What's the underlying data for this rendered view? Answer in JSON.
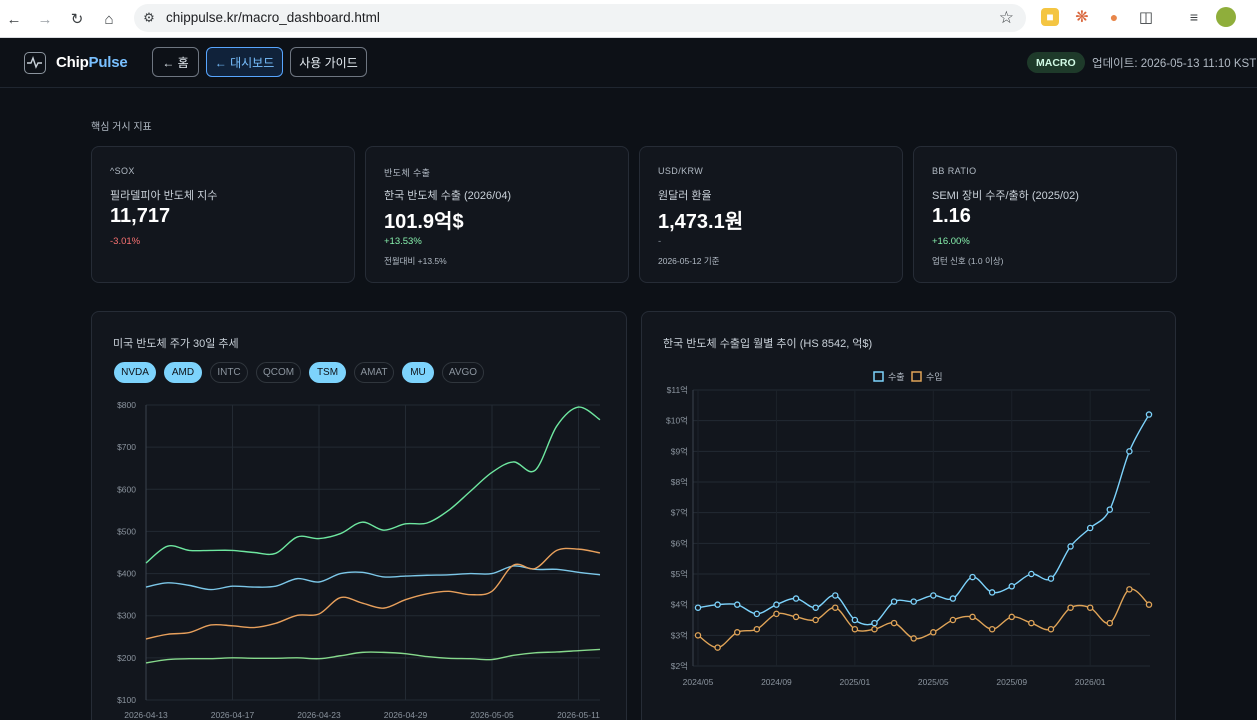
{
  "browser": {
    "url": "chippulse.kr/macro_dashboard.html"
  },
  "header": {
    "brand_part1": "Chip",
    "brand_part2": "Pulse",
    "home_button": "← 홈",
    "dashboard_button": "← 대시보드",
    "guide_button": "사용 가이드",
    "badge": "MACRO",
    "updated": "업데이트: 2026-05-13 11:10 KST"
  },
  "section_title": "핵심 거시 지표",
  "kpis": [
    {
      "code": "^SOX",
      "name": "필라델피아 반도체 지수",
      "value": "11,717",
      "change": "-3.01%",
      "note": ""
    },
    {
      "code": "반도체 수출",
      "name": "한국 반도체 수출 (2026/04)",
      "value": "101.9억$",
      "change": "+13.53%",
      "note": "전월대비 +13.5%"
    },
    {
      "code": "USD/KRW",
      "name": "원달러 환율",
      "value": "1,473.1원",
      "change": "-",
      "note": "2026-05-12 기준"
    },
    {
      "code": "BB RATIO",
      "name": "SEMI 장비 수주/출하 (2025/02)",
      "value": "1.16",
      "change": "+16.00%",
      "note": "업턴 신호 (1.0 이상)"
    }
  ],
  "colors": {
    "negative": "#f87171",
    "positive": "#86efac",
    "accent": "#7dd3fc",
    "export": "#7dd3fc",
    "import": "#e0a458",
    "nvda": "#6ee7a0",
    "amd": "#7cc7e8",
    "mu": "#e8a05c",
    "tsm": "#86d98c"
  },
  "chart1": {
    "title": "미국 반도체 주가 30일 추세",
    "tickers": [
      {
        "label": "NVDA",
        "active": true
      },
      {
        "label": "AMD",
        "active": true
      },
      {
        "label": "INTC",
        "active": false
      },
      {
        "label": "QCOM",
        "active": false
      },
      {
        "label": "TSM",
        "active": true
      },
      {
        "label": "AMAT",
        "active": false
      },
      {
        "label": "MU",
        "active": true
      },
      {
        "label": "AVGO",
        "active": false
      }
    ]
  },
  "chart2": {
    "title": "한국 반도체 수출입 월별 추이 (HS 8542, 억$)",
    "legend_export": "수출",
    "legend_import": "수입"
  },
  "chart_data": [
    {
      "type": "line",
      "title": "미국 반도체 주가 30일 추세",
      "x_ticks": [
        "2026-04-13",
        "2026-04-17",
        "2026-04-23",
        "2026-04-29",
        "2026-05-05",
        "2026-05-11"
      ],
      "y_ticks": [
        "$100",
        "$200",
        "$300",
        "$400",
        "$500",
        "$600",
        "$700",
        "$800"
      ],
      "ylim": [
        100,
        800
      ],
      "grid": true,
      "series": [
        {
          "name": "NVDA",
          "values": [
            425,
            465,
            455,
            455,
            455,
            450,
            448,
            487,
            483,
            495,
            522,
            503,
            518,
            520,
            550,
            595,
            640,
            665,
            645,
            750,
            795,
            765
          ]
        },
        {
          "name": "AMD",
          "values": [
            368,
            378,
            372,
            362,
            370,
            368,
            370,
            388,
            380,
            400,
            403,
            392,
            394,
            396,
            397,
            400,
            400,
            418,
            410,
            410,
            403,
            397
          ]
        },
        {
          "name": "MU",
          "values": [
            245,
            256,
            260,
            278,
            276,
            272,
            282,
            301,
            304,
            343,
            330,
            318,
            338,
            352,
            358,
            350,
            358,
            420,
            412,
            455,
            458,
            449
          ]
        },
        {
          "name": "TSM",
          "values": [
            188,
            196,
            198,
            198,
            200,
            199,
            199,
            200,
            198,
            205,
            213,
            213,
            210,
            203,
            199,
            198,
            196,
            206,
            212,
            214,
            217,
            220
          ]
        }
      ]
    },
    {
      "type": "line",
      "title": "한국 반도체 수출입 월별 추이 (HS 8542, 억$)",
      "x_ticks": [
        "2024/05",
        "2024/09",
        "2025/01",
        "2025/05",
        "2025/09",
        "2026/01"
      ],
      "y_ticks": [
        "$2억",
        "$3억",
        "$4억",
        "$5억",
        "$6억",
        "$7억",
        "$8억",
        "$9억",
        "$10억",
        "$11억"
      ],
      "ylim": [
        2,
        11
      ],
      "grid": true,
      "legend": "top-center",
      "series": [
        {
          "name": "수출",
          "values": [
            3.9,
            4.0,
            4.0,
            3.7,
            4.0,
            4.2,
            3.9,
            4.3,
            3.5,
            3.4,
            4.1,
            4.1,
            4.3,
            4.2,
            4.9,
            4.4,
            4.6,
            5.0,
            4.85,
            5.9,
            6.5,
            7.1,
            9.0,
            10.2
          ]
        },
        {
          "name": "수입",
          "values": [
            3.0,
            2.6,
            3.1,
            3.2,
            3.7,
            3.6,
            3.5,
            3.9,
            3.2,
            3.2,
            3.4,
            2.9,
            3.1,
            3.5,
            3.6,
            3.2,
            3.6,
            3.4,
            3.2,
            3.9,
            3.9,
            3.4,
            4.5,
            4.0
          ]
        }
      ]
    }
  ]
}
